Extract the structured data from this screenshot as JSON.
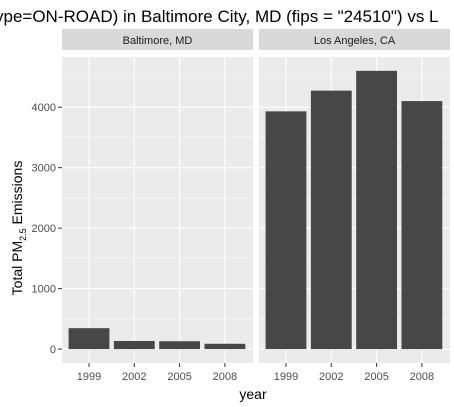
{
  "chart_data": {
    "type": "bar",
    "title": "ype=ON-ROAD) in Baltimore City, MD (fips = \"24510\") vs L",
    "xlabel": "year",
    "ylabel": "Total PM2.5 Emissions",
    "ylabel_parts": {
      "before": "Total PM",
      "subscript": "2.5",
      "after": " Emissions"
    },
    "categories": [
      "1999",
      "2002",
      "2005",
      "2008"
    ],
    "yticks": [
      0,
      1000,
      2000,
      3000,
      4000
    ],
    "ylim": [
      -230,
      4830
    ],
    "grid": true,
    "colors": {
      "bar": "#474747",
      "panel": "#ebebeb",
      "strip": "#d9d9d9",
      "grid_major": "#ffffff",
      "grid_minor": "#f5f5f5"
    },
    "panels": [
      {
        "label": "Baltimore, MD",
        "values": [
          346,
          134,
          130,
          88
        ]
      },
      {
        "label": "Los Angeles, CA",
        "values": [
          3931,
          4274,
          4601,
          4101
        ]
      }
    ]
  }
}
